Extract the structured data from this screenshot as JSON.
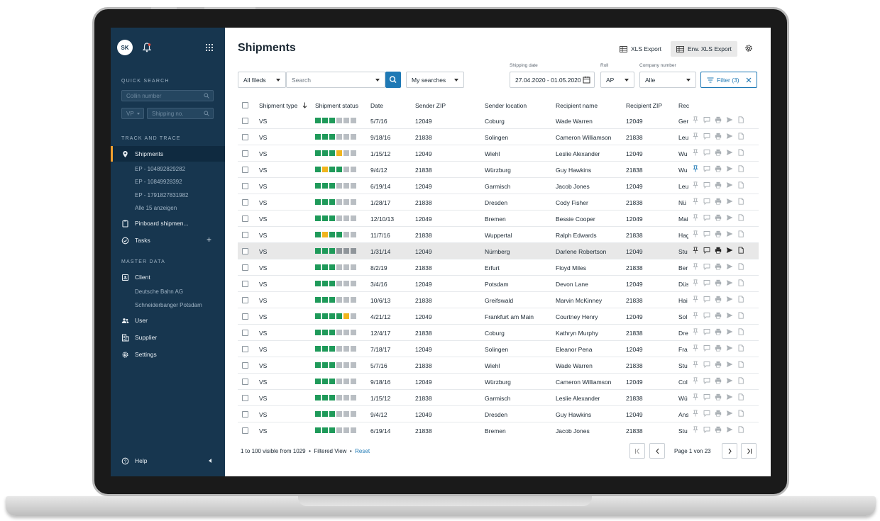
{
  "sidebar": {
    "avatar": "SK",
    "quick_search_label": "QUICK SEARCH",
    "collin_placeholder": "Collin number",
    "vp_label": "VP",
    "shipping_no_placeholder": "Shipping no.",
    "track_label": "TRACK AND TRACE",
    "shipments": "Shipments",
    "sub_items": [
      "EP - 104892829282",
      "EP - 10849928392",
      "EP - 1791827831982",
      "Alle 15 anzeigen"
    ],
    "pinboard": "Pinboard shipmen...",
    "tasks": "Tasks",
    "master_label": "MASTER DATA",
    "client": "Client",
    "client_sub": [
      "Deutsche Bahn AG",
      "Schneiderbanger Potsdam"
    ],
    "user": "User",
    "supplier": "Supplier",
    "settings": "Settings",
    "help": "Help"
  },
  "header": {
    "title": "Shipments",
    "xls_export": "XLS Export",
    "erw_xls_export": "Erw. XLS Export"
  },
  "filters": {
    "all_fields": "All fileds",
    "search_placeholder": "Search",
    "my_searches": "My searches",
    "shipping_date_label": "Shipping date",
    "shipping_date": "27.04.2020 - 01.05.2020",
    "roll_label": "Roll",
    "roll": "AP",
    "company_label": "Company number",
    "company": "Alle",
    "filter_btn": "Filter (3)"
  },
  "table": {
    "columns": [
      "Shipment type",
      "Shipment status",
      "Date",
      "Sender ZIP",
      "Sender location",
      "Recipient name",
      "Recipient ZIP",
      "Rec"
    ],
    "rows": [
      {
        "type": "VS",
        "status": "gggddd",
        "date": "5/7/16",
        "szip": "12049",
        "sloc": "Coburg",
        "rname": "Wade Warren",
        "rzip": "12049",
        "rec": "Ger"
      },
      {
        "type": "VS",
        "status": "gggddd",
        "date": "9/18/16",
        "szip": "21838",
        "sloc": "Solingen",
        "rname": "Cameron Williamson",
        "rzip": "21838",
        "rec": "Leu"
      },
      {
        "type": "VS",
        "status": "gggydd",
        "date": "1/15/12",
        "szip": "12049",
        "sloc": "Wiehl",
        "rname": "Leslie Alexander",
        "rzip": "12049",
        "rec": "Wu"
      },
      {
        "type": "VS",
        "status": "gyggdd",
        "date": "9/4/12",
        "szip": "21838",
        "sloc": "Würzburg",
        "rname": "Guy Hawkins",
        "rzip": "21838",
        "rec": "Wu",
        "pinned": true
      },
      {
        "type": "VS",
        "status": "gggddd",
        "date": "6/19/14",
        "szip": "12049",
        "sloc": "Garmisch",
        "rname": "Jacob Jones",
        "rzip": "12049",
        "rec": "Leu"
      },
      {
        "type": "VS",
        "status": "gggddd",
        "date": "1/28/17",
        "szip": "21838",
        "sloc": "Dresden",
        "rname": "Cody Fisher",
        "rzip": "21838",
        "rec": "Nü"
      },
      {
        "type": "VS",
        "status": "gggddd",
        "date": "12/10/13",
        "szip": "12049",
        "sloc": "Bremen",
        "rname": "Bessie Cooper",
        "rzip": "12049",
        "rec": "Mai"
      },
      {
        "type": "VS",
        "status": "gyggdd",
        "date": "11/7/16",
        "szip": "21838",
        "sloc": "Wuppertal",
        "rname": "Ralph Edwards",
        "rzip": "21838",
        "rec": "Hag"
      },
      {
        "type": "VS",
        "status": "gggddd",
        "date": "1/31/14",
        "szip": "12049",
        "sloc": "Nürnberg",
        "rname": "Darlene Robertson",
        "rzip": "12049",
        "rec": "Stu",
        "hover": true
      },
      {
        "type": "VS",
        "status": "gggddd",
        "date": "8/2/19",
        "szip": "21838",
        "sloc": "Erfurt",
        "rname": "Floyd Miles",
        "rzip": "21838",
        "rec": "Ber"
      },
      {
        "type": "VS",
        "status": "gggddd",
        "date": "3/4/16",
        "szip": "12049",
        "sloc": "Potsdam",
        "rname": "Devon Lane",
        "rzip": "12049",
        "rec": "Düs"
      },
      {
        "type": "VS",
        "status": "gggddd",
        "date": "10/6/13",
        "szip": "21838",
        "sloc": "Greifswald",
        "rname": "Marvin McKinney",
        "rzip": "21838",
        "rec": "Hai"
      },
      {
        "type": "VS",
        "status": "ggggyd",
        "date": "4/21/12",
        "szip": "12049",
        "sloc": "Frankfurt am Main",
        "rname": "Courtney Henry",
        "rzip": "12049",
        "rec": "Sol"
      },
      {
        "type": "VS",
        "status": "gggddd",
        "date": "12/4/17",
        "szip": "21838",
        "sloc": "Coburg",
        "rname": "Kathryn Murphy",
        "rzip": "21838",
        "rec": "Dre"
      },
      {
        "type": "VS",
        "status": "gggddd",
        "date": "7/18/17",
        "szip": "12049",
        "sloc": "Solingen",
        "rname": "Eleanor Pena",
        "rzip": "12049",
        "rec": "Fra"
      },
      {
        "type": "VS",
        "status": "gggddd",
        "date": "5/7/16",
        "szip": "21838",
        "sloc": "Wiehl",
        "rname": "Wade Warren",
        "rzip": "21838",
        "rec": "Stu"
      },
      {
        "type": "VS",
        "status": "gggddd",
        "date": "9/18/16",
        "szip": "12049",
        "sloc": "Würzburg",
        "rname": "Cameron Williamson",
        "rzip": "12049",
        "rec": "Col"
      },
      {
        "type": "VS",
        "status": "gggddd",
        "date": "1/15/12",
        "szip": "21838",
        "sloc": "Garmisch",
        "rname": "Leslie Alexander",
        "rzip": "21838",
        "rec": "Wü"
      },
      {
        "type": "VS",
        "status": "gggddd",
        "date": "9/4/12",
        "szip": "12049",
        "sloc": "Dresden",
        "rname": "Guy Hawkins",
        "rzip": "12049",
        "rec": "Ans"
      },
      {
        "type": "VS",
        "status": "gggddd",
        "date": "6/19/14",
        "szip": "21838",
        "sloc": "Bremen",
        "rname": "Jacob Jones",
        "rzip": "21838",
        "rec": "Stu"
      }
    ]
  },
  "footer": {
    "visible": "1 to 100 visible from 1029",
    "filtered": "Filtered View",
    "reset": "Reset",
    "page": "Page 1 von 23"
  },
  "colors": {
    "accent": "#1e79b5",
    "sidebar": "#17364f",
    "ok": "#1f9a5a",
    "warn": "#f0b51e"
  }
}
